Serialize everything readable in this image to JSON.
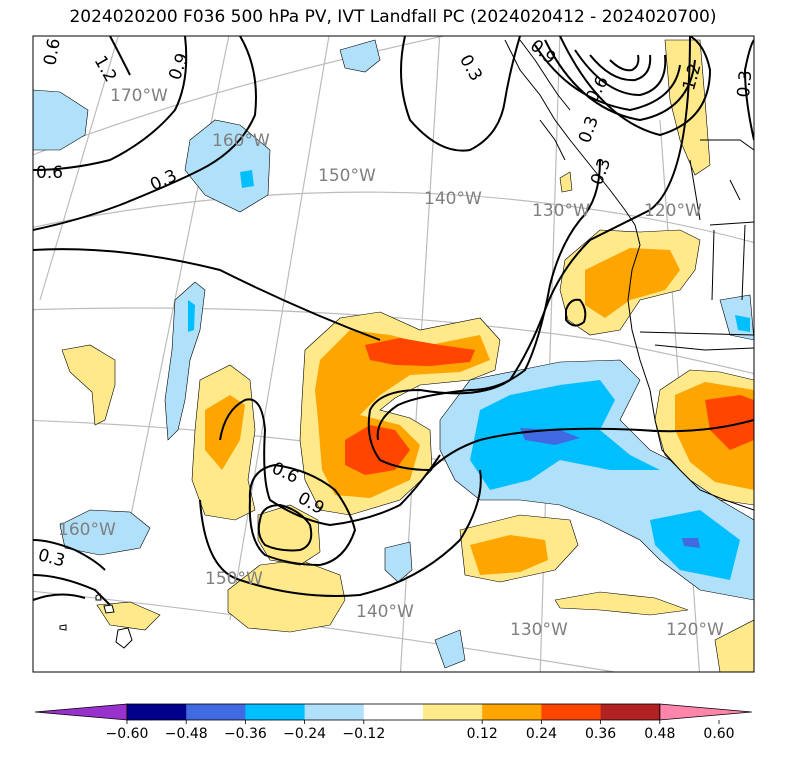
{
  "title": "2024020200 F036 500 hPa PV, IVT Landfall PC (2024020412 - 2024020700)",
  "longitude_labels": [
    "170°W",
    "160°W",
    "150°W",
    "140°W",
    "130°W",
    "120°W",
    "160°W",
    "150°W",
    "140°W",
    "130°W",
    "120°W"
  ],
  "pv_contour_labels": [
    "0.6",
    "1.2",
    "0.9",
    "0.3",
    "0.6",
    "0.3",
    "0.3",
    "1.2",
    "0.3",
    "0.9",
    "0.6",
    "0.3",
    "0.9",
    "0.6",
    "0.3"
  ],
  "colorbar": {
    "ticks": [
      "−0.60",
      "−0.48",
      "−0.36",
      "−0.24",
      "−0.12",
      "0.12",
      "0.24",
      "0.36",
      "0.48",
      "0.60"
    ],
    "colors": [
      "#9932cc",
      "#00008b",
      "#4169e1",
      "#00bfff",
      "#b0e0fa",
      "#ffffff",
      "#ffe98a",
      "#ffa500",
      "#ff4500",
      "#b22222",
      "#ff85aa"
    ]
  },
  "colors": {
    "neg_weak": "#b0e0fa",
    "neg_mid": "#00bfff",
    "neg_strong": "#4169e1",
    "pos_weak": "#ffe98a",
    "pos_mid": "#ffa500",
    "pos_strong": "#ff4500"
  }
}
